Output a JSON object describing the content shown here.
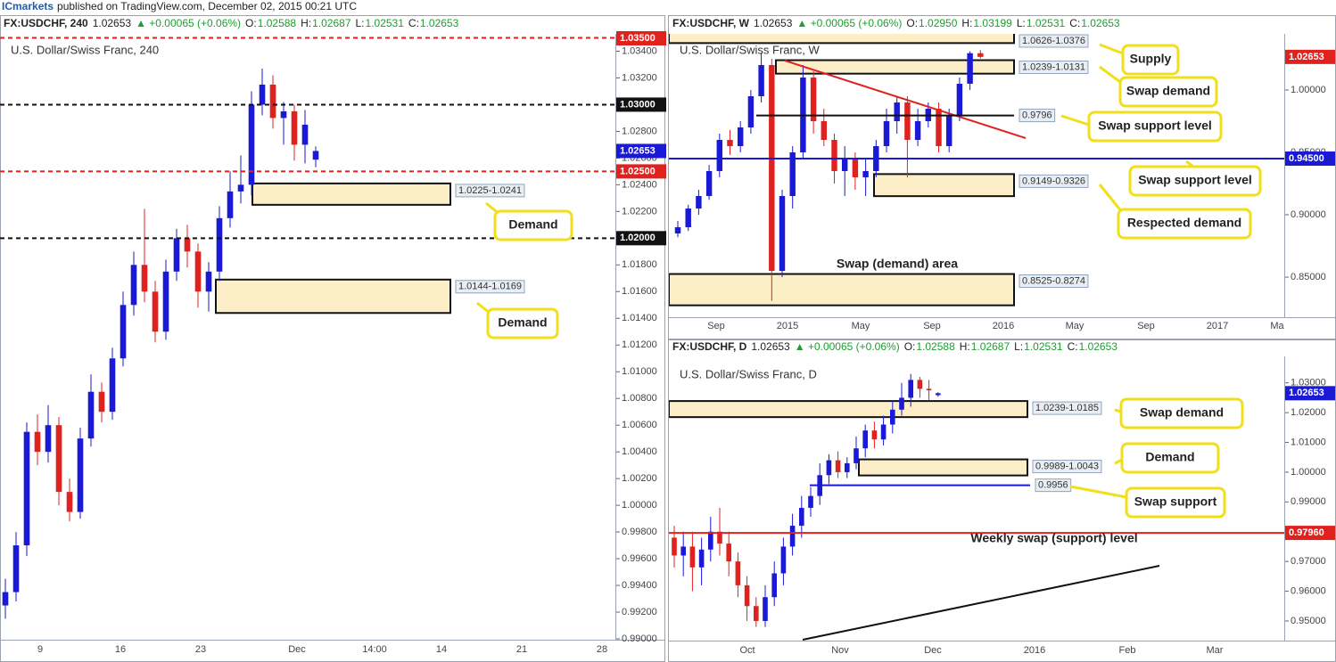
{
  "header": {
    "publisher": "ICmarkets",
    "caption": "published on TradingView.com, December 02, 2015 00:21 UTC"
  },
  "chart_data": [
    {
      "type": "candlestick",
      "symbol": "FX:USDCHF, 240",
      "last": "1.02653",
      "change": "▲ +0.00065 (+0.06%)",
      "ohlc": [
        {
          "label": "O:",
          "value": "1.02588"
        },
        {
          "label": "H:",
          "value": "1.02687"
        },
        {
          "label": "L:",
          "value": "1.02531"
        },
        {
          "label": "C:",
          "value": "1.02653"
        }
      ],
      "title": "U.S. Dollar/Swiss Franc, 240",
      "up_color": "#1a1ad6",
      "down_color": "#e0221f",
      "ylim": [
        0.99,
        1.0353
      ],
      "yticks": [
        {
          "value": 0.99,
          "label": "0.99000"
        },
        {
          "value": 0.992,
          "label": "0.99200"
        },
        {
          "value": 0.994,
          "label": "0.99400"
        },
        {
          "value": 0.996,
          "label": "0.99600"
        },
        {
          "value": 0.998,
          "label": "0.99800"
        },
        {
          "value": 1.0,
          "label": "1.00000"
        },
        {
          "value": 1.002,
          "label": "1.00200"
        },
        {
          "value": 1.004,
          "label": "1.00400"
        },
        {
          "value": 1.006,
          "label": "1.00600"
        },
        {
          "value": 1.008,
          "label": "1.00800"
        },
        {
          "value": 1.01,
          "label": "1.01000"
        },
        {
          "value": 1.012,
          "label": "1.01200"
        },
        {
          "value": 1.014,
          "label": "1.01400"
        },
        {
          "value": 1.016,
          "label": "1.01600"
        },
        {
          "value": 1.018,
          "label": "1.01800"
        },
        {
          "value": 1.02,
          "label": "1.02000"
        },
        {
          "value": 1.022,
          "label": "1.02200"
        },
        {
          "value": 1.024,
          "label": "1.02400"
        },
        {
          "value": 1.026,
          "label": "1.02600"
        },
        {
          "value": 1.028,
          "label": "1.02800"
        },
        {
          "value": 1.03,
          "label": "1.03000"
        },
        {
          "value": 1.032,
          "label": "1.03200"
        },
        {
          "value": 1.034,
          "label": "1.03400"
        }
      ],
      "xlabels": [
        "9",
        "16",
        "23",
        "Dec",
        "14:00",
        "14",
        "21",
        "28"
      ],
      "series": {
        "open": [
          0.9925,
          0.9935,
          0.997,
          1.0055,
          1.004,
          1.006,
          1.001,
          0.9995,
          1.005,
          1.0085,
          1.007,
          1.011,
          1.015,
          1.018,
          1.016,
          1.013,
          1.0175,
          1.02,
          1.019,
          1.016,
          1.0175,
          1.0215,
          1.0235,
          1.024,
          1.03,
          1.0315,
          1.029,
          1.0295,
          1.027,
          1.02588
        ],
        "high": [
          0.9945,
          0.998,
          1.0062,
          1.0068,
          1.0075,
          1.0066,
          1.002,
          1.0058,
          1.0098,
          1.0092,
          1.0118,
          1.016,
          1.019,
          1.0222,
          1.0168,
          1.0184,
          1.0207,
          1.021,
          1.0196,
          1.0182,
          1.0224,
          1.025,
          1.0262,
          1.031,
          1.0327,
          1.0322,
          1.0302,
          1.03,
          1.0296,
          1.02687
        ],
        "low": [
          0.9915,
          0.9928,
          0.9962,
          1.003,
          1.0032,
          1.0,
          0.9988,
          0.999,
          1.0044,
          1.0062,
          1.0064,
          1.0104,
          1.0142,
          1.0152,
          1.0122,
          1.0124,
          1.0168,
          1.0178,
          1.0148,
          1.0145,
          1.0168,
          1.0208,
          1.0226,
          1.0232,
          1.0292,
          1.0282,
          1.027,
          1.0258,
          1.0256,
          1.02531
        ],
        "close": [
          0.9935,
          0.997,
          1.0055,
          1.004,
          1.006,
          1.001,
          0.9995,
          1.005,
          1.0085,
          1.007,
          1.011,
          1.015,
          1.018,
          1.016,
          1.013,
          1.0175,
          1.02,
          1.019,
          1.016,
          1.0175,
          1.0215,
          1.0235,
          1.024,
          1.03,
          1.0315,
          1.029,
          1.0295,
          1.027,
          1.0285,
          1.02653
        ]
      },
      "levels": [
        {
          "value": 1.035,
          "label": "1.03500",
          "color": "#e0221f",
          "dash": true,
          "tag": false
        },
        {
          "value": 1.03,
          "label": "1.03000",
          "color": "#111111",
          "dash": true,
          "tag": false
        },
        {
          "value": 1.025,
          "label": "1.02500",
          "color": "#e0221f",
          "dash": true,
          "tag": false
        },
        {
          "value": 1.02,
          "label": "1.02000",
          "color": "#111111",
          "dash": true,
          "tag": false
        }
      ],
      "current": {
        "value": 1.02653,
        "label": "1.02653",
        "color": "#1a1ad6"
      },
      "zones": [
        {
          "bounds": [
            1.0225,
            1.0241
          ],
          "label": "1.0225-1.0241"
        },
        {
          "bounds": [
            1.0144,
            1.0169
          ],
          "label": "1.0144-1.0169"
        }
      ],
      "callouts": [
        "Demand",
        "Demand"
      ],
      "annotations": []
    },
    {
      "type": "candlestick",
      "symbol": "FX:USDCHF, W",
      "last": "1.02653",
      "change": "▲ +0.00065 (+0.06%)",
      "ohlc": [
        {
          "label": "O:",
          "value": "1.02950"
        },
        {
          "label": "H:",
          "value": "1.03199"
        },
        {
          "label": "L:",
          "value": "1.02531"
        },
        {
          "label": "C:",
          "value": "1.02653"
        }
      ],
      "title": "U.S. Dollar/Swiss Franc, W",
      "up_color": "#1a1ad6",
      "down_color": "#e0221f",
      "ylim": [
        0.8186,
        1.045
      ],
      "yticks": [
        {
          "value": 0.85,
          "label": "0.85000"
        },
        {
          "value": 0.9,
          "label": "0.90000"
        },
        {
          "value": 0.95,
          "label": "0.95000"
        },
        {
          "value": 1.0,
          "label": "1.00000"
        }
      ],
      "xlabels": [
        "Sep",
        "2015",
        "May",
        "Sep",
        "2016",
        "May",
        "Sep",
        "2017",
        "Ma"
      ],
      "series": {
        "open": [
          0.885,
          0.89,
          0.905,
          0.915,
          0.935,
          0.96,
          0.955,
          0.97,
          0.995,
          1.02,
          0.855,
          0.915,
          0.95,
          1.01,
          0.975,
          0.96,
          0.935,
          0.945,
          0.93,
          0.935,
          0.955,
          0.975,
          0.99,
          0.96,
          0.975,
          0.985,
          0.955,
          0.98,
          1.005,
          1.0295
        ],
        "high": [
          0.895,
          0.908,
          0.92,
          0.94,
          0.965,
          0.968,
          0.975,
          1.0,
          1.03,
          1.025,
          0.92,
          0.955,
          1.02,
          1.015,
          0.985,
          0.965,
          0.955,
          0.95,
          0.945,
          0.96,
          0.985,
          0.995,
          0.995,
          0.985,
          0.99,
          0.99,
          0.985,
          1.01,
          1.031,
          1.03199
        ],
        "low": [
          0.882,
          0.887,
          0.9,
          0.912,
          0.93,
          0.948,
          0.95,
          0.965,
          0.99,
          0.831,
          0.85,
          0.905,
          0.945,
          0.965,
          0.955,
          0.925,
          0.915,
          0.92,
          0.915,
          0.93,
          0.95,
          0.965,
          0.93,
          0.955,
          0.97,
          0.95,
          0.95,
          0.975,
          1.0,
          1.02531
        ],
        "close": [
          0.89,
          0.905,
          0.915,
          0.935,
          0.96,
          0.955,
          0.97,
          0.995,
          1.02,
          0.855,
          0.915,
          0.95,
          1.01,
          0.975,
          0.96,
          0.935,
          0.945,
          0.93,
          0.935,
          0.955,
          0.975,
          0.99,
          0.96,
          0.975,
          0.985,
          0.955,
          0.98,
          1.005,
          1.0295,
          1.02653
        ]
      },
      "levels": [
        {
          "value": 0.945,
          "label": "0.94500",
          "color": "#1a1ad6",
          "dash": false,
          "tag": false
        },
        {
          "value": 0.9796,
          "label": "0.9796",
          "color": "#111111",
          "dash": false,
          "tag": true
        }
      ],
      "current": {
        "value": 1.02653,
        "label": "1.02653",
        "color": "#e0221f"
      },
      "zones": [
        {
          "bounds": [
            1.0626,
            1.0376
          ],
          "label": "1.0626-1.0376"
        },
        {
          "bounds": [
            1.0239,
            1.0131
          ],
          "label": "1.0239-1.0131"
        },
        {
          "bounds": [
            0.9149,
            0.9326
          ],
          "label": "0.9149-0.9326"
        },
        {
          "bounds": [
            0.8525,
            0.8274
          ],
          "label": "0.8525-0.8274"
        }
      ],
      "callouts": [
        "Supply",
        "Swap demand",
        "Swap support level",
        "Swap support level",
        "Respected demand"
      ],
      "annotations": [
        "Swap (demand) area"
      ]
    },
    {
      "type": "candlestick",
      "symbol": "FX:USDCHF, D",
      "last": "1.02653",
      "change": "▲ +0.00065 (+0.06%)",
      "ohlc": [
        {
          "label": "O:",
          "value": "1.02588"
        },
        {
          "label": "H:",
          "value": "1.02687"
        },
        {
          "label": "L:",
          "value": "1.02531"
        },
        {
          "label": "C:",
          "value": "1.02653"
        }
      ],
      "title": "U.S. Dollar/Swiss Franc, D",
      "up_color": "#1a1ad6",
      "down_color": "#e0221f",
      "ylim": [
        0.9437,
        1.0389
      ],
      "yticks": [
        {
          "value": 0.95,
          "label": "0.95000"
        },
        {
          "value": 0.96,
          "label": "0.96000"
        },
        {
          "value": 0.97,
          "label": "0.97000"
        },
        {
          "value": 0.98,
          "label": "0.98000"
        },
        {
          "value": 0.99,
          "label": "0.99000"
        },
        {
          "value": 1.0,
          "label": "1.00000"
        },
        {
          "value": 1.01,
          "label": "1.01000"
        },
        {
          "value": 1.02,
          "label": "1.02000"
        },
        {
          "value": 1.03,
          "label": "1.03000"
        }
      ],
      "xlabels": [
        "Oct",
        "Nov",
        "Dec",
        "2016",
        "Feb",
        "Mar"
      ],
      "series": {
        "open": [
          0.978,
          0.972,
          0.975,
          0.968,
          0.974,
          0.98,
          0.976,
          0.97,
          0.962,
          0.955,
          0.95,
          0.958,
          0.966,
          0.975,
          0.982,
          0.988,
          0.992,
          0.999,
          1.004,
          1.0,
          1.003,
          1.008,
          1.014,
          1.011,
          1.016,
          1.021,
          1.025,
          1.031,
          1.028,
          1.02588
        ],
        "high": [
          0.982,
          0.98,
          0.98,
          0.978,
          0.985,
          0.988,
          0.98,
          0.973,
          0.965,
          0.958,
          0.962,
          0.97,
          0.978,
          0.986,
          0.992,
          0.995,
          1.003,
          1.006,
          1.007,
          1.005,
          1.012,
          1.016,
          1.017,
          1.019,
          1.024,
          1.03,
          1.033,
          1.032,
          1.031,
          1.02687
        ],
        "low": [
          0.968,
          0.965,
          0.96,
          0.962,
          0.97,
          0.972,
          0.965,
          0.958,
          0.95,
          0.948,
          0.948,
          0.955,
          0.962,
          0.972,
          0.978,
          0.985,
          0.989,
          0.996,
          0.998,
          0.998,
          1.001,
          1.005,
          1.008,
          1.009,
          1.013,
          1.019,
          1.022,
          1.025,
          1.024,
          1.02531
        ],
        "close": [
          0.972,
          0.975,
          0.968,
          0.974,
          0.98,
          0.976,
          0.97,
          0.962,
          0.955,
          0.95,
          0.958,
          0.966,
          0.975,
          0.982,
          0.988,
          0.992,
          0.999,
          1.004,
          1.0,
          1.003,
          1.008,
          1.014,
          1.011,
          1.016,
          1.021,
          1.025,
          1.031,
          1.028,
          1.0275,
          1.02653
        ]
      },
      "levels": [
        {
          "value": 0.9796,
          "label": "0.97960",
          "color": "#e0221f",
          "dash": false,
          "tag": false
        },
        {
          "value": 0.9956,
          "label": "0.9956",
          "color": "#1a1ad6",
          "dash": false,
          "tag": true
        }
      ],
      "current": {
        "value": 1.02653,
        "label": "1.02653",
        "color": "#1a1ad6"
      },
      "zones": [
        {
          "bounds": [
            1.0239,
            1.0185
          ],
          "label": "1.0239-1.0185"
        },
        {
          "bounds": [
            0.9989,
            1.0043
          ],
          "label": "0.9989-1.0043"
        }
      ],
      "callouts": [
        "Swap demand",
        "Demand",
        "Swap support"
      ],
      "annotations": [
        "Weekly swap (support) level"
      ]
    }
  ]
}
